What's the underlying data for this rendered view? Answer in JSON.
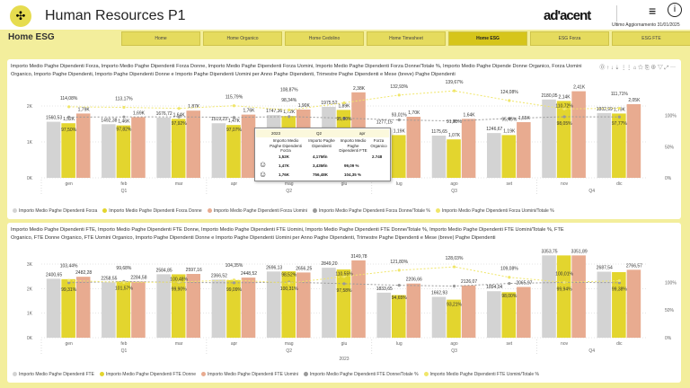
{
  "header": {
    "title": "Human Resources P1",
    "brand": "ad'acent",
    "last_update_label": "Ultimo Aggiornamento",
    "last_update": "31/01/2025",
    "page": "Home ESG"
  },
  "nav": [
    {
      "label": "Home"
    },
    {
      "label": "Home Organico"
    },
    {
      "label": "Home Cedolino"
    },
    {
      "label": "Home Timesheet"
    },
    {
      "label": "Home ESG",
      "active": true
    },
    {
      "label": "ESG Forza"
    },
    {
      "label": "ESG FTE"
    }
  ],
  "colors": {
    "grey": "#d3d3d3",
    "yellow": "#e3d52e",
    "salmon": "#e8ab90",
    "accent": "#d6c51a"
  },
  "tooltip": {
    "year": "2023",
    "quarter": "Q2",
    "month": "apr",
    "headers": [
      "Importo Medio Paghe Dipendenti Forza",
      "Importo Paghe Dipendenti",
      "Importo Medio Paghe Dipendenti FTE",
      "Forza Organico"
    ],
    "total": [
      "1,52K",
      "4,17Mln",
      "",
      "2.748"
    ],
    "women": [
      "1,47K",
      "3,43Mln",
      "99,09 %"
    ],
    "men": [
      "1,76K",
      "756,48K",
      "104,35 %"
    ]
  },
  "chart_data": [
    {
      "type": "bar",
      "title": "Importo Medio Paghe Dipendenti Forza, Importo Medio Paghe Dipendenti Forza Donne, Importo Medio Paghe Dipendenti Forza Uomini, Importo Medio Paghe Dipendenti Forza Donne/Totale %, Importo Medio Paghe Dipende Donne Organico, Forza Uomini Organico, Importo Paghe Dipendenti, Importo Paghe Dipendenti Donne e Importo Paghe Dipendenti Uomini per Anno Paghe Dipendenti, Trimestre Paghe Dipendenti e Mese (breve) Paghe Dipendenti",
      "categories": [
        "gen",
        "feb",
        "mar",
        "apr",
        "mag",
        "giu",
        "lug",
        "ago",
        "set",
        "nov",
        "dic"
      ],
      "quarters": [
        {
          "label": "Q1",
          "from": 0,
          "to": 2
        },
        {
          "label": "Q2",
          "from": 3,
          "to": 5
        },
        {
          "label": "Q3",
          "from": 6,
          "to": 8
        },
        {
          "label": "Q4",
          "from": 9,
          "to": 10
        }
      ],
      "year": "",
      "yticks": [
        "0K",
        "1K",
        "2K"
      ],
      "ymax": 2600,
      "y2ticks": [
        "0%",
        "50%",
        "100%"
      ],
      "y2max": 150,
      "series": [
        {
          "name": "Importo Medio Paghe Dipendenti Forza",
          "color": "#d3d3d3",
          "values": [
            1560.53,
            1492.38,
            1676.72,
            1519.23,
            1747.36,
            1975.52,
            1277.15,
            1175.65,
            1246.67,
            2180.05,
            1802.99
          ],
          "labels": [
            "1560,53",
            "1492,38",
            "1676,72",
            "1519,23",
            "1747,36",
            "1975,52",
            "1277,15",
            "1175,65",
            "1246,67",
            "2180,05",
            "1802,99"
          ]
        },
        {
          "name": "Importo Medio Paghe Dipendenti Forza Donne",
          "color": "#e3d52e",
          "values": [
            1520,
            1460,
            1640,
            1470,
            1720,
            1890,
            1190,
            1070,
            1190,
            2140,
            1790
          ],
          "labels": [
            "1,52K",
            "1,46K",
            "1,64K",
            "1,47K",
            "1,72K",
            "1,89K",
            "1,19K",
            "1,07K",
            "1,19K",
            "2,14K",
            "1,79K"
          ]
        },
        {
          "name": "Importo Medio Paghe Dipendenti Forza Uomini",
          "color": "#e8ab90",
          "values": [
            1790,
            1690,
            1870,
            1760,
            1900,
            2380,
            1700,
            1640,
            1550,
            2410,
            2050
          ],
          "labels": [
            "1,79K",
            "1,69K",
            "1,87K",
            "1,76K",
            "1,90K",
            "2,38K",
            "1,70K",
            "1,64K",
            "1,55K",
            "2,41K",
            "2,05K"
          ]
        },
        {
          "name": "Importo Medio Paghe Dipendenti Forza Donne/Totale %",
          "color": "#999999",
          "line": true,
          "values": [
            97.5,
            97.82,
            97.92,
            97.07,
            98.34,
            95.8,
            93.01,
            91.35,
            95.45,
            98.05,
            97.77
          ],
          "labels": [
            "97,50%",
            "97,82%",
            "97,92%",
            "97,07%",
            "98,34%",
            "95,80%",
            "93,01%",
            "91,35%",
            "95,45%",
            "98,05%",
            "97,77%"
          ]
        },
        {
          "name": "Importo Medio Paghe Dipendenti Forza Uomini/Totale %",
          "color": "#f0e66a",
          "line": true,
          "values": [
            114.08,
            113.17,
            111.5,
            115.79,
            108.87,
            120.5,
            132.93,
            139.67,
            124.08,
            110.72,
            111.71
          ],
          "labels": [
            "114,08%",
            "113,17%",
            "",
            "115,79%",
            "108,87%",
            "",
            "132,93%",
            "139,67%",
            "124,08%",
            "110,72%",
            "111,71%"
          ]
        }
      ]
    },
    {
      "type": "bar",
      "title": "Importo Medio Paghe Dipendenti FTE, Importo Medio Paghe Dipendenti FTE Donne, Importo Medio Paghe Dipendenti FTE Uomini, Importo Medio Paghe Dipendenti FTE Donne/Totale %, Importo Medio Paghe Dipendenti FTE Uomini/Totale %, FTE Organico, FTE Donne Organico, FTE Uomini Organico, Importo Paghe Dipendenti Donne e Importo Paghe Dipendenti Uomini per Anno Paghe Dipendenti, Trimestre Paghe Dipendenti e Mese (breve) Paghe Dipendenti",
      "categories": [
        "gen",
        "feb",
        "mar",
        "apr",
        "mag",
        "giu",
        "lug",
        "ago",
        "set",
        "nov",
        "dic"
      ],
      "quarters": [
        {
          "label": "Q1",
          "from": 0,
          "to": 2
        },
        {
          "label": "Q2",
          "from": 3,
          "to": 5
        },
        {
          "label": "Q3",
          "from": 6,
          "to": 8
        },
        {
          "label": "Q4",
          "from": 9,
          "to": 10
        }
      ],
      "year": "2023",
      "yticks": [
        "0K",
        "1K",
        "2K",
        "3K"
      ],
      "ymax": 3000,
      "y2ticks": [
        "0%",
        "50%",
        "100%"
      ],
      "y2max": 133,
      "series": [
        {
          "name": "Importo Medio Paghe Dipendenti FTE",
          "color": "#d3d3d3",
          "values": [
            2400.65,
            2258.55,
            2584.85,
            2366.52,
            2696.13,
            2849.2,
            1833.65,
            1662.93,
            1894.04,
            3353.75,
            2687.54
          ],
          "labels": [
            "2400,65",
            "2258,55",
            "2584,85",
            "2366,52",
            "2696,13",
            "2849,20",
            "1833,65",
            "1662,93",
            "1894,04",
            "3353,75",
            "2687,54"
          ]
        },
        {
          "name": "Importo Medio Paghe Dipendenti FTE Donne",
          "color": "#e3d52e",
          "values": [
            2384,
            2294,
            2582,
            2345,
            2705,
            2780,
            1736,
            1550,
            1856,
            3352,
            2671
          ],
          "labels": []
        },
        {
          "name": "Importo Medio Paghe Dipendenti FTE Uomini",
          "color": "#e8ab90",
          "values": [
            2482.28,
            2284.58,
            2597.16,
            2448.52,
            2656.25,
            3149.78,
            2206.66,
            2126.07,
            2065.97,
            3351.89,
            2766.57
          ],
          "labels": [
            "2482,28",
            "2284,58",
            "2597,16",
            "2448,52",
            "2656,25",
            "3149,78",
            "2206,66",
            "2126,07",
            "2065,97",
            "3351,89",
            "2766,57"
          ]
        },
        {
          "name": "Importo Medio Paghe Dipendenti FTE Donne/Totale %",
          "color": "#999999",
          "line": true,
          "values": [
            99.31,
            101.57,
            99.9,
            99.09,
            100.31,
            97.58,
            94.65,
            93.21,
            98.0,
            99.94,
            99.38
          ],
          "labels": [
            "99,31%",
            "101,57%",
            "99,90%",
            "99,09%",
            "100,31%",
            "97,58%",
            "94,65%",
            "93,21%",
            "98,00%",
            "99,94%",
            "99,38%"
          ]
        },
        {
          "name": "Importo Medio Paghe Dipendenti FTE Uomini/Totale %",
          "color": "#f0e66a",
          "line": true,
          "values": [
            103.44,
            99.68,
            100.48,
            104.35,
            98.52,
            110.55,
            121.8,
            128.03,
            109.08,
            100.01,
            103
          ],
          "labels": [
            "103,44%",
            "99,68%",
            "100,48%",
            "104,35%",
            "98,52%",
            "110,55%",
            "121,80%",
            "128,03%",
            "109,08%",
            "100,01%",
            ""
          ]
        }
      ]
    }
  ]
}
